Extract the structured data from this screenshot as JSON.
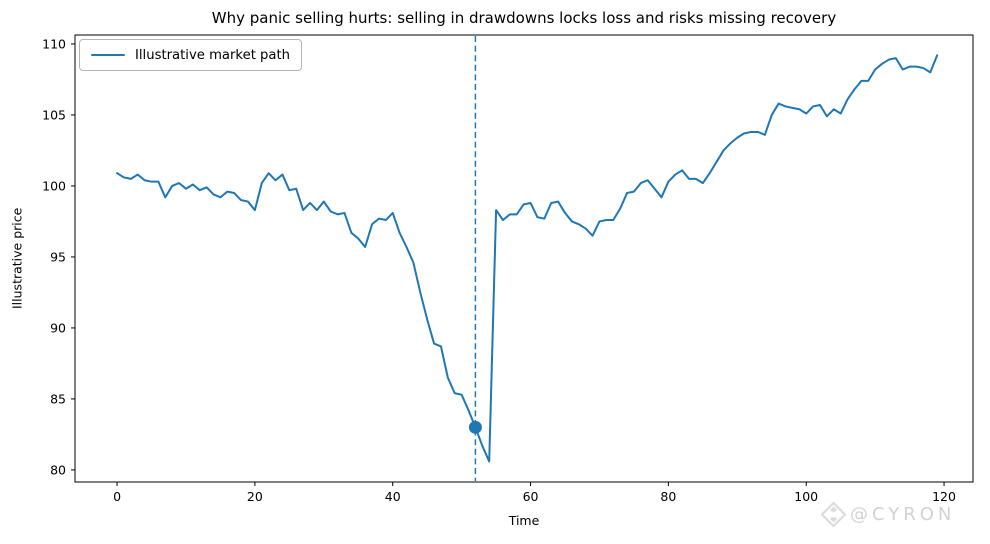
{
  "figure": {
    "title": "Why panic selling hurts: selling in drawdowns locks loss and risks missing recovery",
    "watermark": {
      "icon": "diamond-logo-icon",
      "handle": "@CYRON",
      "color": "#d2d2d2"
    }
  },
  "chart_data": {
    "type": "line",
    "title": "Why panic selling hurts: selling in drawdowns locks loss and risks missing recovery",
    "xlabel": "Time",
    "ylabel": "Illustrative price",
    "legend": {
      "position": "upper-left",
      "entries": [
        "Illustrative market path"
      ]
    },
    "grid": false,
    "line_color": "#1f77b4",
    "xlim": [
      -6.1,
      124.2
    ],
    "ylim": [
      79.15,
      110.63
    ],
    "xticks": [
      0,
      20,
      40,
      60,
      80,
      100,
      120
    ],
    "yticks": [
      80,
      85,
      90,
      95,
      100,
      105,
      110
    ],
    "x_start": 0,
    "x_step": 1,
    "values": [
      100.9,
      100.6,
      100.5,
      100.8,
      100.4,
      100.3,
      100.3,
      99.2,
      100.0,
      100.2,
      99.8,
      100.1,
      99.7,
      99.9,
      99.4,
      99.2,
      99.6,
      99.5,
      99.0,
      98.9,
      98.3,
      100.2,
      100.9,
      100.4,
      100.8,
      99.7,
      99.8,
      98.3,
      98.8,
      98.3,
      98.9,
      98.2,
      98.0,
      98.1,
      96.7,
      96.3,
      95.7,
      97.3,
      97.7,
      97.6,
      98.1,
      96.7,
      95.7,
      94.6,
      92.5,
      90.6,
      88.9,
      88.7,
      86.5,
      85.4,
      85.3,
      84.2,
      83.0,
      81.7,
      80.6,
      98.3,
      97.6,
      98.0,
      98.0,
      98.7,
      98.8,
      97.8,
      97.7,
      98.8,
      98.9,
      98.1,
      97.5,
      97.3,
      97.0,
      96.5,
      97.5,
      97.6,
      97.6,
      98.4,
      99.5,
      99.6,
      100.2,
      100.4,
      99.8,
      99.2,
      100.3,
      100.8,
      101.1,
      100.5,
      100.5,
      100.2,
      100.9,
      101.7,
      102.5,
      103.0,
      103.4,
      103.7,
      103.8,
      103.8,
      103.6,
      105.0,
      105.8,
      105.6,
      105.5,
      105.4,
      105.1,
      105.6,
      105.7,
      104.9,
      105.4,
      105.1,
      106.1,
      106.8,
      107.4,
      107.4,
      108.2,
      108.6,
      108.9,
      109.0,
      108.2,
      108.4,
      108.4,
      108.3,
      108.0,
      109.2
    ],
    "sell_event_vline": {
      "x": 52,
      "style": "dashed",
      "color": "#1f77b4"
    },
    "sell_point_marker": {
      "x": 52,
      "y": 83.0,
      "shape": "dot",
      "color": "#1f77b4"
    }
  }
}
